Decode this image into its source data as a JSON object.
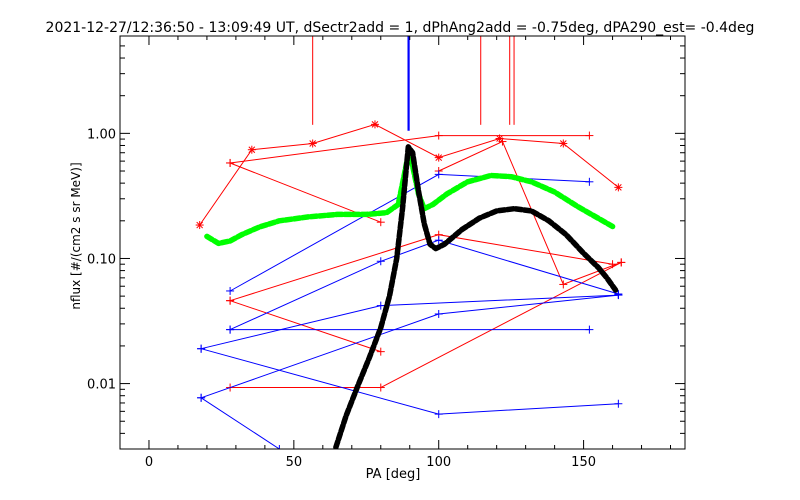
{
  "chart_data": {
    "type": "line",
    "title": "2021-12-27/12:36:50 - 13:09:49 UT, dSectr2add = 1, dPhAng2add = -0.75deg, dPA290_est=  -0.4deg",
    "xlabel": "PA [deg]",
    "ylabel": "nflux [#/(cm2 s sr MeV)]",
    "xlim": [
      -10,
      185
    ],
    "ylim": [
      0.003,
      6
    ],
    "yscale": "log",
    "grid": false,
    "x_ticks": [
      0,
      50,
      100,
      150
    ],
    "x_tick_labels": [
      "0",
      "50",
      "100",
      "150"
    ],
    "y_ticks": [
      0.01,
      0.1,
      1.0
    ],
    "y_tick_labels": [
      "0.01",
      "0.10",
      "1.00"
    ],
    "colors": {
      "red": "#ff0000",
      "blue": "#0000ff",
      "green": "#00ff00",
      "black": "#000000"
    },
    "vertical_markers": [
      {
        "x": 56.5,
        "color": "#ff0000",
        "y_bottom": 1.17
      },
      {
        "x": 89.6,
        "color": "#0000ff",
        "y_bottom": 1.05
      },
      {
        "x": 114.5,
        "color": "#ff0000",
        "y_bottom": 1.17
      },
      {
        "x": 124.5,
        "color": "#ff0000",
        "y_bottom": 1.17
      },
      {
        "x": 126.0,
        "color": "#ff0000",
        "y_bottom": 1.17
      }
    ],
    "series": [
      {
        "color": "#ff0000",
        "marker": "asterisk",
        "points": [
          [
            17.5,
            0.185
          ],
          [
            35.5,
            0.74
          ],
          [
            56.5,
            0.83
          ],
          [
            78,
            1.18
          ],
          [
            100,
            0.64
          ],
          [
            121,
            0.91
          ],
          [
            143,
            0.83
          ],
          [
            162,
            0.37
          ]
        ]
      },
      {
        "color": "#ff0000",
        "marker": "plus",
        "points": [
          [
            28,
            0.58
          ],
          [
            80,
            0.195
          ]
        ]
      },
      {
        "color": "#ff0000",
        "marker": "plus",
        "points": [
          [
            28,
            0.58
          ],
          [
            100,
            0.96
          ],
          [
            152,
            0.96
          ]
        ]
      },
      {
        "color": "#ff0000",
        "marker": "plus",
        "points": [
          [
            100,
            0.5
          ],
          [
            122,
            0.86
          ],
          [
            143,
            0.062
          ],
          [
            163,
            0.093
          ]
        ]
      },
      {
        "color": "#ff0000",
        "marker": "plus",
        "points": [
          [
            28,
            0.046
          ],
          [
            100,
            0.155
          ],
          [
            160,
            0.09
          ]
        ]
      },
      {
        "color": "#ff0000",
        "marker": "plus",
        "points": [
          [
            28,
            0.046
          ],
          [
            80,
            0.018
          ]
        ]
      },
      {
        "color": "#ff0000",
        "marker": "plus",
        "points": [
          [
            28,
            0.0093
          ],
          [
            80,
            0.0093
          ],
          [
            163,
            0.093
          ]
        ]
      },
      {
        "color": "#0000ff",
        "marker": "plus",
        "points": [
          [
            28,
            0.055
          ],
          [
            100,
            0.47
          ],
          [
            152,
            0.41
          ]
        ]
      },
      {
        "color": "#0000ff",
        "marker": "plus",
        "points": [
          [
            28,
            0.027
          ],
          [
            80,
            0.095
          ],
          [
            100,
            0.14
          ],
          [
            162,
            0.052
          ]
        ]
      },
      {
        "color": "#0000ff",
        "marker": "plus",
        "points": [
          [
            28,
            0.027
          ],
          [
            152,
            0.027
          ]
        ]
      },
      {
        "color": "#0000ff",
        "marker": "plus",
        "points": [
          [
            18,
            0.019
          ],
          [
            80,
            0.042
          ],
          [
            162,
            0.051
          ]
        ]
      },
      {
        "color": "#0000ff",
        "marker": "plus",
        "points": [
          [
            18,
            0.019
          ],
          [
            100,
            0.0057
          ],
          [
            162,
            0.0069
          ]
        ]
      },
      {
        "color": "#0000ff",
        "marker": "plus",
        "points": [
          [
            18,
            0.0077
          ],
          [
            100,
            0.036
          ],
          [
            162,
            0.051
          ]
        ]
      },
      {
        "color": "#0000ff",
        "marker": "plus",
        "points": [
          [
            18,
            0.0077
          ],
          [
            45,
            0.003
          ]
        ]
      },
      {
        "color": "#00ff00",
        "marker": "thick-dots",
        "points": [
          [
            20,
            0.15
          ],
          [
            24,
            0.132
          ],
          [
            28,
            0.138
          ],
          [
            32,
            0.155
          ],
          [
            38,
            0.178
          ],
          [
            45,
            0.2
          ],
          [
            55,
            0.215
          ],
          [
            65,
            0.225
          ],
          [
            75,
            0.225
          ],
          [
            82,
            0.232
          ],
          [
            86,
            0.27
          ],
          [
            88,
            0.45
          ],
          [
            89.7,
            0.72
          ],
          [
            91,
            0.55
          ],
          [
            93,
            0.33
          ],
          [
            95,
            0.25
          ],
          [
            98,
            0.27
          ],
          [
            103,
            0.33
          ],
          [
            110,
            0.41
          ],
          [
            118,
            0.46
          ],
          [
            125,
            0.45
          ],
          [
            132,
            0.41
          ],
          [
            140,
            0.34
          ],
          [
            148,
            0.26
          ],
          [
            155,
            0.21
          ],
          [
            160,
            0.18
          ]
        ]
      },
      {
        "color": "#000000",
        "marker": "thick-dots",
        "points": [
          [
            64.5,
            0.0031
          ],
          [
            68,
            0.0055
          ],
          [
            72,
            0.0095
          ],
          [
            76,
            0.016
          ],
          [
            80,
            0.028
          ],
          [
            83,
            0.05
          ],
          [
            85.5,
            0.1
          ],
          [
            87.5,
            0.25
          ],
          [
            89.5,
            0.78
          ],
          [
            91,
            0.7
          ],
          [
            93,
            0.35
          ],
          [
            95,
            0.19
          ],
          [
            97,
            0.13
          ],
          [
            99,
            0.12
          ],
          [
            102,
            0.13
          ],
          [
            108,
            0.17
          ],
          [
            114,
            0.21
          ],
          [
            120,
            0.24
          ],
          [
            126,
            0.25
          ],
          [
            132,
            0.24
          ],
          [
            138,
            0.2
          ],
          [
            144,
            0.155
          ],
          [
            150,
            0.11
          ],
          [
            155,
            0.085
          ],
          [
            158,
            0.07
          ],
          [
            161,
            0.056
          ]
        ]
      }
    ]
  }
}
